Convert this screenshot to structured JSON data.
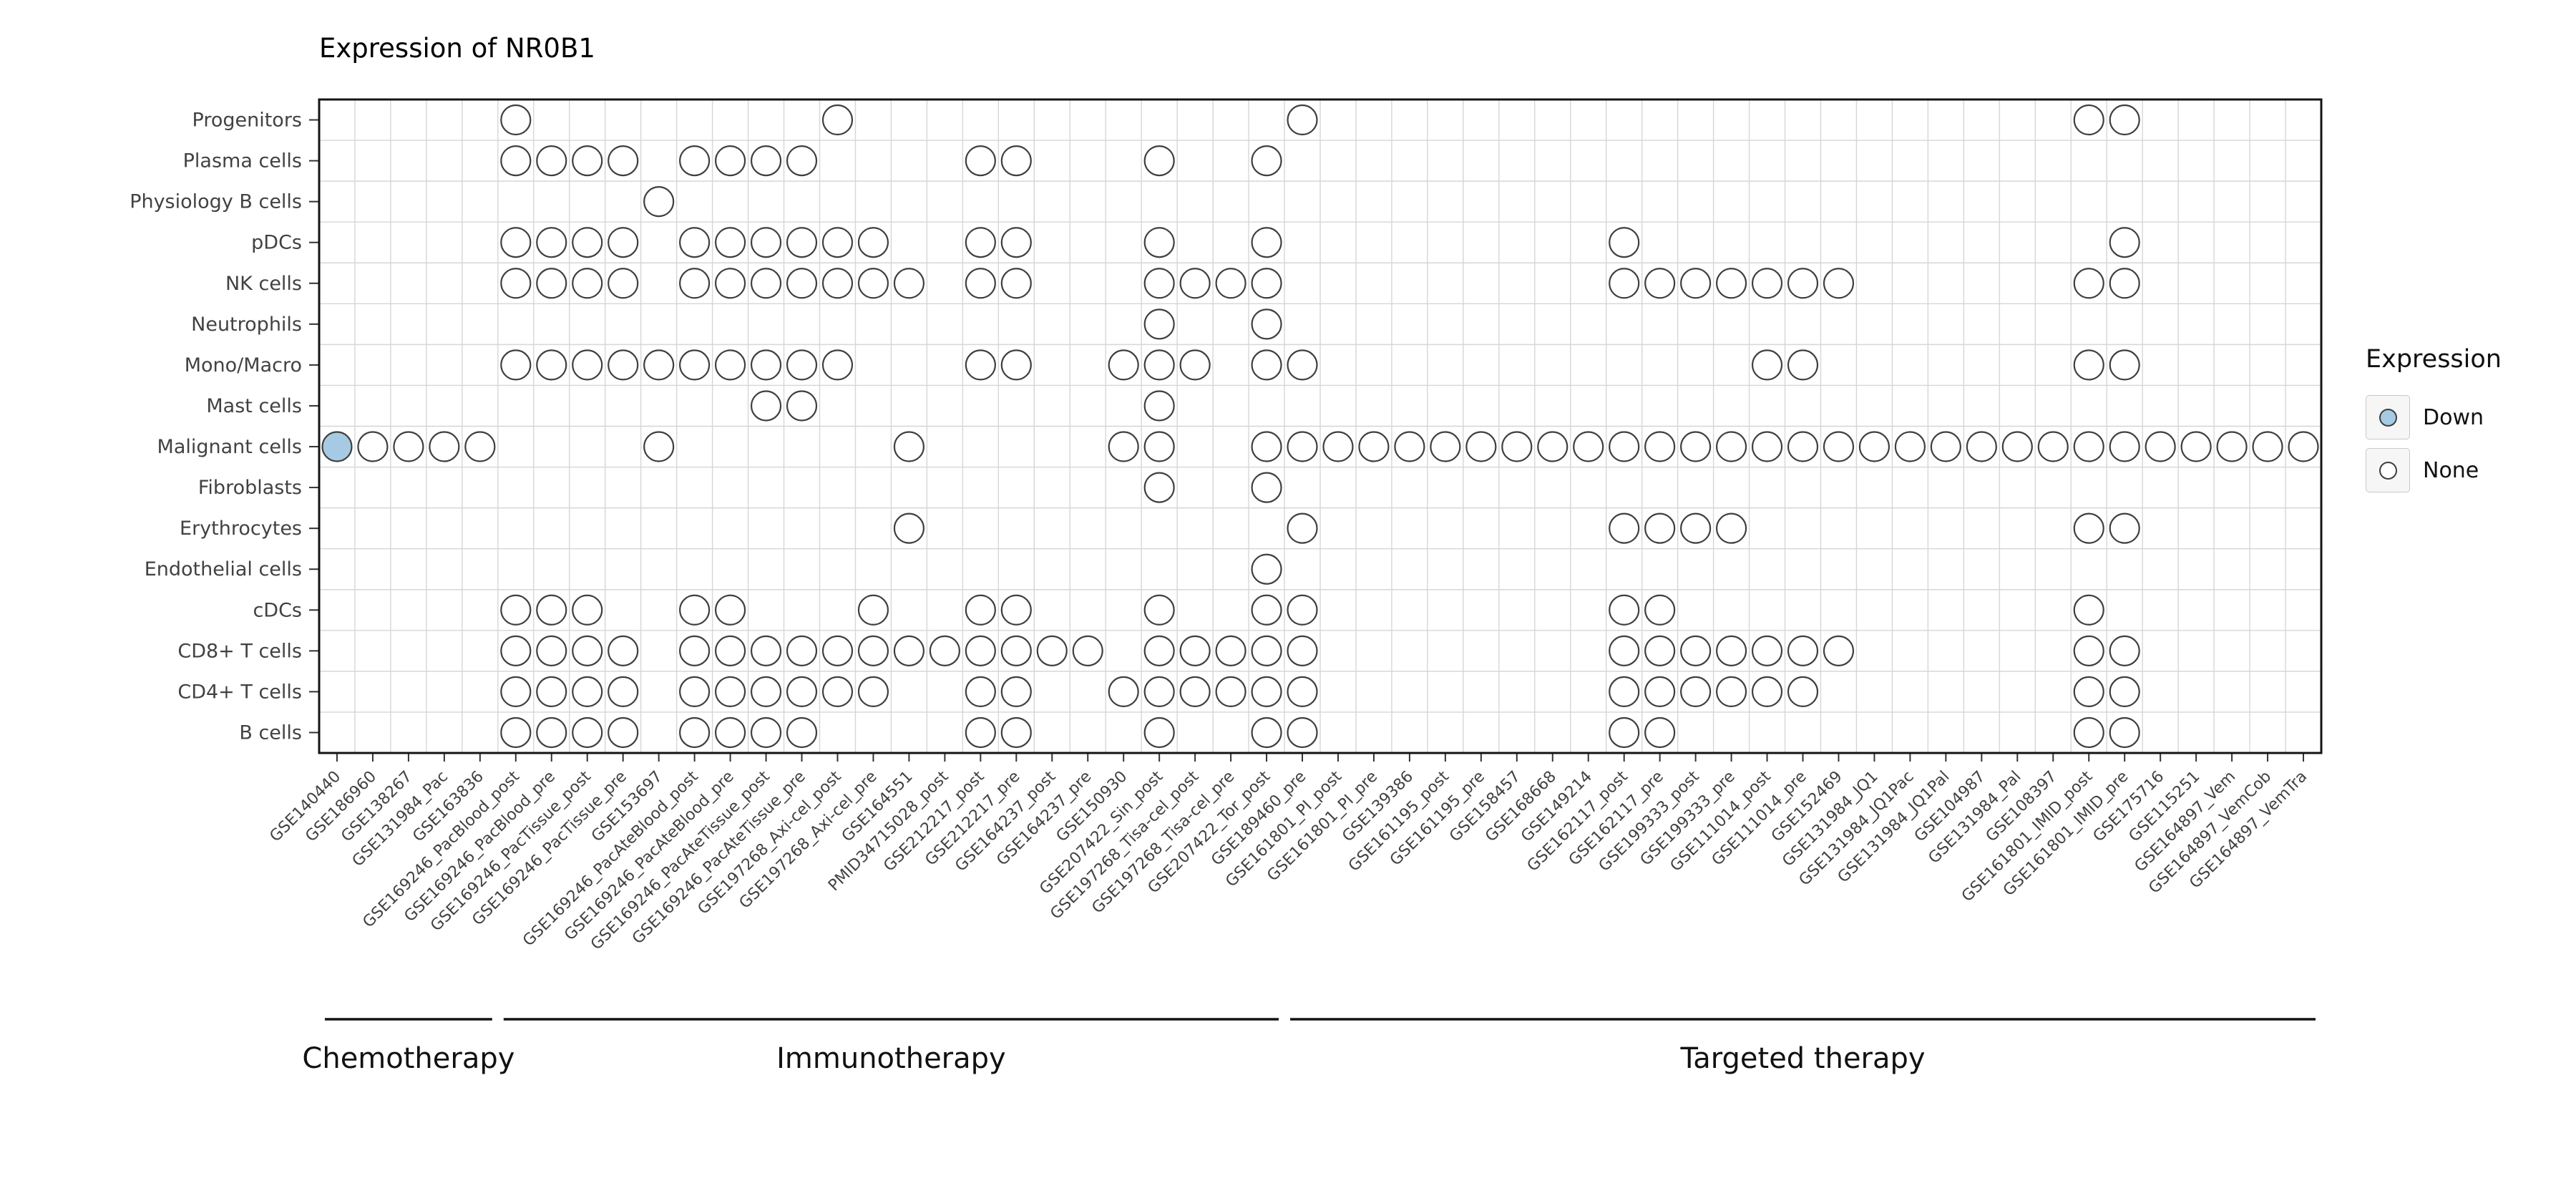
{
  "title": "Expression of NR0B1",
  "legend": {
    "title": "Expression",
    "items": [
      {
        "label": "Down",
        "fill": "#a6cae3"
      },
      {
        "label": "None",
        "fill": "#ffffff"
      }
    ]
  },
  "chart_data": {
    "type": "scatter",
    "subtype": "dot-matrix",
    "title": "Expression of NR0B1",
    "gene": "NR0B1",
    "legend_position": "right",
    "x_tick_angle": 45,
    "grid": true,
    "rows": [
      "Progenitors",
      "Plasma cells",
      "Physiology B cells",
      "pDCs",
      "NK cells",
      "Neutrophils",
      "Mono/Macro",
      "Mast cells",
      "Malignant cells",
      "Fibroblasts",
      "Erythrocytes",
      "Endothelial cells",
      "cDCs",
      "CD8+ T cells",
      "CD4+ T cells",
      "B cells"
    ],
    "columns": [
      "GSE140440",
      "GSE186960",
      "GSE138267",
      "GSE131984_Pac",
      "GSE163836",
      "GSE169246_PacBlood_post",
      "GSE169246_PacBlood_pre",
      "GSE169246_PacTissue_post",
      "GSE169246_PacTissue_pre",
      "GSE153697",
      "GSE169246_PacAteBlood_post",
      "GSE169246_PacAteBlood_pre",
      "GSE169246_PacAteTissue_post",
      "GSE169246_PacAteTissue_pre",
      "GSE197268_Axi-cel_post",
      "GSE197268_Axi-cel_pre",
      "GSE164551",
      "PMID34715028_post",
      "GSE212217_post",
      "GSE212217_pre",
      "GSE164237_post",
      "GSE164237_pre",
      "GSE150930",
      "GSE207422_Sin_post",
      "GSE197268_Tisa-cel_post",
      "GSE197268_Tisa-cel_pre",
      "GSE207422_Tor_post",
      "GSE189460_pre",
      "GSE161801_PI_post",
      "GSE161801_PI_pre",
      "GSE139386",
      "GSE161195_post",
      "GSE161195_pre",
      "GSE158457",
      "GSE168668",
      "GSE149214",
      "GSE162117_post",
      "GSE162117_pre",
      "GSE199333_post",
      "GSE199333_pre",
      "GSE111014_post",
      "GSE111014_pre",
      "GSE152469",
      "GSE131984_JQ1",
      "GSE131984_JQ1Pac",
      "GSE131984_JQ1Pal",
      "GSE104987",
      "GSE131984_Pal",
      "GSE108397",
      "GSE161801_IMID_post",
      "GSE161801_IMID_pre",
      "GSE175716",
      "GSE115251",
      "GSE164897_Vem",
      "GSE164897_VemCob",
      "GSE164897_VemTra"
    ],
    "groups": [
      {
        "label": "Chemotherapy",
        "start": 1,
        "end": 5
      },
      {
        "label": "Immunotherapy",
        "start": 6,
        "end": 27
      },
      {
        "label": "Targeted therapy",
        "start": 28,
        "end": 56
      }
    ],
    "none_points": {
      "Progenitors": [
        6,
        15,
        28,
        50,
        51
      ],
      "Plasma cells": [
        6,
        7,
        8,
        9,
        11,
        12,
        13,
        14,
        19,
        20,
        24,
        27
      ],
      "Physiology B cells": [
        10
      ],
      "pDCs": [
        6,
        7,
        8,
        9,
        11,
        12,
        13,
        14,
        15,
        16,
        19,
        20,
        24,
        27,
        37,
        51
      ],
      "NK cells": [
        6,
        7,
        8,
        9,
        11,
        12,
        13,
        14,
        15,
        16,
        17,
        19,
        20,
        24,
        25,
        26,
        27,
        37,
        38,
        39,
        40,
        41,
        42,
        43,
        50,
        51
      ],
      "Neutrophils": [
        24,
        27
      ],
      "Mono/Macro": [
        6,
        7,
        8,
        9,
        10,
        11,
        12,
        13,
        14,
        15,
        19,
        20,
        23,
        24,
        25,
        27,
        28,
        41,
        42,
        50,
        51
      ],
      "Mast cells": [
        13,
        14,
        24
      ],
      "Malignant cells": [
        2,
        3,
        4,
        5,
        10,
        17,
        23,
        24,
        27,
        28,
        29,
        30,
        31,
        32,
        33,
        34,
        35,
        36,
        37,
        38,
        39,
        40,
        41,
        42,
        43,
        44,
        45,
        46,
        47,
        48,
        49,
        50,
        51,
        52,
        53,
        54,
        55,
        56
      ],
      "Fibroblasts": [
        24,
        27
      ],
      "Erythrocytes": [
        17,
        28,
        37,
        38,
        39,
        40,
        50,
        51
      ],
      "Endothelial cells": [
        27
      ],
      "cDCs": [
        6,
        7,
        8,
        11,
        12,
        16,
        19,
        20,
        24,
        27,
        28,
        37,
        38,
        50
      ],
      "CD8+ T cells": [
        6,
        7,
        8,
        9,
        11,
        12,
        13,
        14,
        15,
        16,
        17,
        18,
        19,
        20,
        21,
        22,
        24,
        25,
        26,
        27,
        28,
        37,
        38,
        39,
        40,
        41,
        42,
        43,
        50,
        51
      ],
      "CD4+ T cells": [
        6,
        7,
        8,
        9,
        11,
        12,
        13,
        14,
        15,
        16,
        19,
        20,
        23,
        24,
        25,
        26,
        27,
        28,
        37,
        38,
        39,
        40,
        41,
        42,
        50,
        51
      ],
      "B cells": [
        6,
        7,
        8,
        9,
        11,
        12,
        13,
        14,
        19,
        20,
        24,
        27,
        28,
        37,
        38,
        50,
        51
      ]
    },
    "down_points": [
      {
        "row": "Malignant cells",
        "col": 1
      }
    ]
  }
}
